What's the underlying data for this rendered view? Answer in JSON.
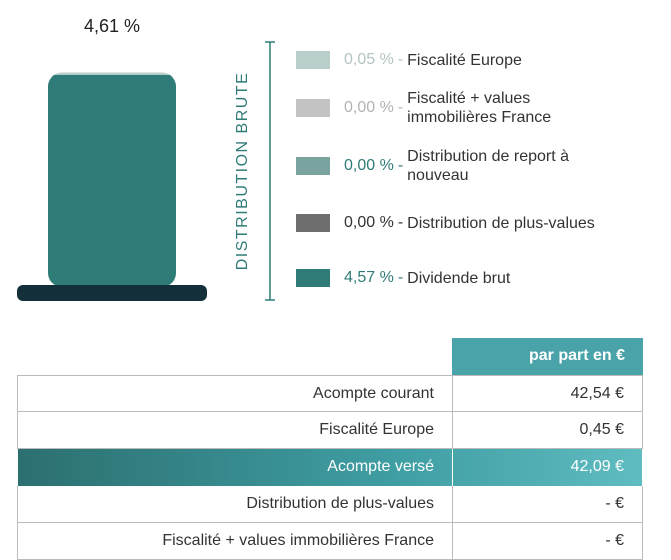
{
  "chart_data": {
    "type": "stacked_bar",
    "total": 4.61,
    "total_label": "4,61 %",
    "axis_label": "DISTRIBUTION BRUTE",
    "legend_separator": "-",
    "series": [
      {
        "name": "Fiscalité Europe",
        "color": "#b9cfcc",
        "values": [
          0.05
        ],
        "value_labels": [
          "0,05 %"
        ]
      },
      {
        "name": "Fiscalité + values immobilières France",
        "color": "#c4c4c4",
        "values": [
          0.0
        ],
        "value_labels": [
          "0,00 %"
        ]
      },
      {
        "name": "Distribution de report à nouveau",
        "color": "#7aa39f",
        "values": [
          0.0
        ],
        "value_labels": [
          "0,00 %"
        ]
      },
      {
        "name": "Distribution de plus-values",
        "color": "#6e6e6e",
        "values": [
          0.0
        ],
        "value_labels": [
          "0,00 %"
        ]
      },
      {
        "name": "Dividende brut",
        "color": "#2f7b77",
        "values": [
          4.57
        ],
        "value_labels": [
          "4,57 %"
        ]
      }
    ]
  },
  "table": {
    "column_header": "par part en €",
    "highlight_row": 2,
    "rows": [
      [
        "Acompte courant",
        "42,54 €"
      ],
      [
        "Fiscalité Europe",
        "0,45 €"
      ],
      [
        "Acompte versé",
        "42,09 €"
      ],
      [
        "Distribution de plus-values",
        "- €"
      ],
      [
        "Fiscalité + values immobilières France",
        "- €"
      ]
    ]
  }
}
